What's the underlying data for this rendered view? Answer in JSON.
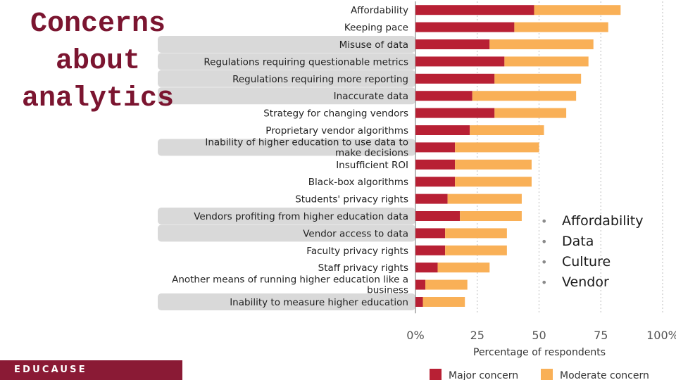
{
  "slide": {
    "title": "Concerns about analytics",
    "bullets": [
      "Affordability",
      "Data",
      "Culture",
      "Vendor"
    ],
    "footer_logo": "EDUCAUSE"
  },
  "colors": {
    "major": "#b82034",
    "moderate": "#f9b057",
    "highlight": "#d9d9d9",
    "footer": "#8a1a35",
    "title": "#7b1530"
  },
  "chart_data": {
    "type": "bar",
    "orientation": "horizontal",
    "stacked": true,
    "xlabel": "Percentage of respondents",
    "xlim": [
      0,
      100
    ],
    "xticks": [
      "0%",
      "25",
      "50",
      "75",
      "100%"
    ],
    "grid": true,
    "legend_position": "bottom",
    "categories": [
      "Affordability",
      "Keeping pace",
      "Misuse of data",
      "Regulations requiring questionable metrics",
      "Regulations requiring more reporting",
      "Inaccurate data",
      "Strategy for changing vendors",
      "Proprietary vendor algorithms",
      "Inability of higher education to use data to make decisions",
      "Insufficient ROI",
      "Black-box algorithms",
      "Students' privacy rights",
      "Vendors profiting from higher education data",
      "Vendor access to data",
      "Faculty privacy rights",
      "Staff privacy rights",
      "Another means of running higher education like a business",
      "Inability to measure higher education"
    ],
    "highlighted": [
      false,
      false,
      true,
      true,
      true,
      true,
      false,
      false,
      true,
      false,
      false,
      false,
      true,
      true,
      false,
      false,
      false,
      true
    ],
    "series": [
      {
        "name": "Major concern",
        "values": [
          48,
          40,
          30,
          36,
          32,
          23,
          32,
          22,
          16,
          16,
          16,
          13,
          18,
          12,
          12,
          9,
          4,
          3
        ]
      },
      {
        "name": "Moderate concern",
        "values": [
          35,
          38,
          42,
          34,
          35,
          42,
          29,
          30,
          34,
          31,
          31,
          30,
          25,
          25,
          25,
          21,
          17,
          17
        ]
      }
    ]
  }
}
